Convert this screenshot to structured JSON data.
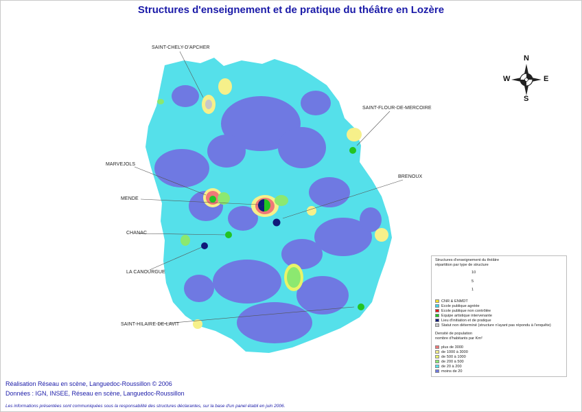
{
  "title": "Structures d'enseignement et de pratique du théâtre en Lozère",
  "places": [
    {
      "name": "SAINT-CHELY-D'APCHER"
    },
    {
      "name": "SAINT-FLOUR-DE-MERCOIRE"
    },
    {
      "name": "MARVEJOLS"
    },
    {
      "name": "BRENOUX"
    },
    {
      "name": "MENDE"
    },
    {
      "name": "CHANAC"
    },
    {
      "name": "LA CANOURGUE"
    },
    {
      "name": "SAINT-HILAIRE-DE-LAVIT"
    }
  ],
  "compass": {
    "n": "N",
    "s": "S",
    "e": "E",
    "w": "W"
  },
  "legend": {
    "title_line1": "Structures d'enseignement du théâtre",
    "title_line2": "répartition par type de structure",
    "scale": [
      "10",
      "5",
      "1"
    ],
    "types": [
      {
        "label": "CNR & ENMDT",
        "color": "#f5e12a"
      },
      {
        "label": "Ecole publique agréée",
        "color": "#3fd4e8"
      },
      {
        "label": "Ecole publique non contrôlée",
        "color": "#e01818"
      },
      {
        "label": "Equipe artistique intervenante",
        "color": "#22c422"
      },
      {
        "label": "Lieu d'initiation et de pratique",
        "color": "#101a7a"
      },
      {
        "label": "Statut non déterminé (structure n'ayant pas répondu à l'enquête)",
        "color": "#c8c8c8"
      }
    ],
    "density_title1": "Densité de population",
    "density_title2": "nombre d'habitants par Km²",
    "density": [
      {
        "label": "plus de 3000",
        "color": "#f07878"
      },
      {
        "label": "de 1000 à 3000",
        "color": "#f6f08a"
      },
      {
        "label": "de 500 à 1000",
        "color": "#e8f468"
      },
      {
        "label": "de 200 à 500",
        "color": "#8ce870"
      },
      {
        "label": "de 20 à 200",
        "color": "#55e0ea"
      },
      {
        "label": "moins de 20",
        "color": "#6f79e2"
      }
    ]
  },
  "credits": {
    "line1": "Réalisation Réseau en scène, Languedoc-Roussillon © 2006",
    "line2": "Données : IGN, INSEE, Réseau en scène, Languedoc-Roussillon",
    "disclaimer": "Les informations présentées sont communiquées sous la responsabilité des structures déclarantes, sur la base d'un panel établi en juin 2006."
  }
}
